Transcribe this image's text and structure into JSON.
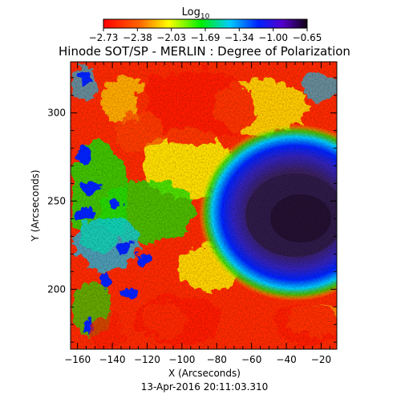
{
  "title": "Hinode SOT/SP - MERLIN : Degree of Polarization",
  "colorbar": {
    "label_base": "Log",
    "label_sub": "10",
    "ticks": [
      "-2.73",
      "-2.38",
      "-2.03",
      "-1.69",
      "-1.34",
      "-1.00",
      "-0.65"
    ],
    "range": [
      -2.73,
      -0.65
    ],
    "colormap": "rainbow (red = low, dark purple = high)"
  },
  "xaxis": {
    "label": "X (Arcseconds)",
    "ticks": [
      "-160",
      "-140",
      "-120",
      "-100",
      "-80",
      "-60",
      "-40",
      "-20"
    ],
    "range": [
      -164,
      -11
    ]
  },
  "yaxis": {
    "label": "Y (Arcseconds)",
    "ticks": [
      "200",
      "250",
      "300"
    ],
    "range": [
      166,
      329
    ]
  },
  "timestamp": "13-Apr-2016 20:11:03.310",
  "features": {
    "sunspot_center": [
      -38,
      238
    ],
    "description_label": "high polarization region (sunspot) toward the right edge, mixed low/medium polarization elsewhere"
  },
  "colors": {
    "low": "#ff1a00",
    "mid": "#ffff00",
    "green": "#22dd00",
    "cyan": "#00ccff",
    "blue": "#0022ff",
    "high": "#201030",
    "frame": "#000000",
    "background": "#ffffff"
  }
}
